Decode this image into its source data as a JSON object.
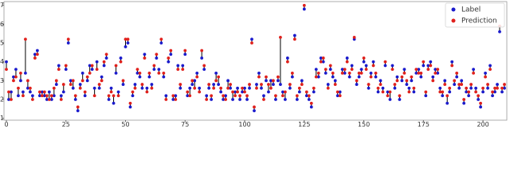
{
  "chart_data": {
    "type": "scatter",
    "x": [
      0,
      1,
      2,
      3,
      4,
      5,
      6,
      7,
      8,
      9,
      10,
      11,
      12,
      13,
      14,
      15,
      16,
      17,
      18,
      19,
      20,
      21,
      22,
      23,
      24,
      25,
      26,
      27,
      28,
      29,
      30,
      31,
      32,
      33,
      34,
      35,
      36,
      37,
      38,
      39,
      40,
      41,
      42,
      43,
      44,
      45,
      46,
      47,
      48,
      49,
      50,
      51,
      52,
      53,
      54,
      55,
      56,
      57,
      58,
      59,
      60,
      61,
      62,
      63,
      64,
      65,
      66,
      67,
      68,
      69,
      70,
      71,
      72,
      73,
      74,
      75,
      76,
      77,
      78,
      79,
      80,
      81,
      82,
      83,
      84,
      85,
      86,
      87,
      88,
      89,
      90,
      91,
      92,
      93,
      94,
      95,
      96,
      97,
      98,
      99,
      100,
      101,
      102,
      103,
      104,
      105,
      106,
      107,
      108,
      109,
      110,
      111,
      112,
      113,
      114,
      115,
      116,
      117,
      118,
      119,
      120,
      121,
      122,
      123,
      124,
      125,
      126,
      127,
      128,
      129,
      130,
      131,
      132,
      133,
      134,
      135,
      136,
      137,
      138,
      139,
      140,
      141,
      142,
      143,
      144,
      145,
      146,
      147,
      148,
      149,
      150,
      151,
      152,
      153,
      154,
      155,
      156,
      157,
      158,
      159,
      160,
      161,
      162,
      163,
      164,
      165,
      166,
      167,
      168,
      169,
      170,
      171,
      172,
      173,
      174,
      175,
      176,
      177,
      178,
      179,
      180,
      181,
      182,
      183,
      184,
      185,
      186,
      187,
      188,
      189,
      190,
      191,
      192,
      193,
      194,
      195,
      196,
      197,
      198,
      199,
      200,
      201,
      202,
      203,
      204,
      205,
      206,
      207,
      208,
      209
    ],
    "series": [
      {
        "name": "Label",
        "color": "#1a1acc",
        "values": [
          4.0,
          2.0,
          2.4,
          3.2,
          3.6,
          2.2,
          3.0,
          2.4,
          3.4,
          2.6,
          2.4,
          2.2,
          4.4,
          4.6,
          2.2,
          2.4,
          2.2,
          2.0,
          2.4,
          2.0,
          2.2,
          2.8,
          3.8,
          2.2,
          2.4,
          3.6,
          5.0,
          3.0,
          2.6,
          2.0,
          1.4,
          2.8,
          3.4,
          2.2,
          3.0,
          3.8,
          3.6,
          2.6,
          4.0,
          2.6,
          3.2,
          3.8,
          4.2,
          2.0,
          2.6,
          1.8,
          3.4,
          2.4,
          4.2,
          2.8,
          4.8,
          5.0,
          1.6,
          2.2,
          2.8,
          3.4,
          3.2,
          2.6,
          4.4,
          2.6,
          3.2,
          2.8,
          3.6,
          4.2,
          3.6,
          5.0,
          3.2,
          2.2,
          4.0,
          4.4,
          2.0,
          2.2,
          3.8,
          2.6,
          3.8,
          4.4,
          2.2,
          2.6,
          2.8,
          3.0,
          3.4,
          2.6,
          4.2,
          3.6,
          2.2,
          2.6,
          2.0,
          2.8,
          3.4,
          2.8,
          2.4,
          2.0,
          2.2,
          3.0,
          2.6,
          2.0,
          2.4,
          2.6,
          2.0,
          2.4,
          2.6,
          2.0,
          2.6,
          5.2,
          1.4,
          2.8,
          3.4,
          2.6,
          2.2,
          3.0,
          2.4,
          3.0,
          2.8,
          2.0,
          3.0,
          2.8,
          2.4,
          2.0,
          4.2,
          2.6,
          3.2,
          5.4,
          2.0,
          2.4,
          3.0,
          6.8,
          2.2,
          2.0,
          1.6,
          2.4,
          3.6,
          3.2,
          4.2,
          4.0,
          3.4,
          2.8,
          3.6,
          3.2,
          3.0,
          2.2,
          2.4,
          3.6,
          3.4,
          4.2,
          3.2,
          3.8,
          5.2,
          2.8,
          3.2,
          3.6,
          4.0,
          3.8,
          2.6,
          3.4,
          4.0,
          3.2,
          2.4,
          3.0,
          2.6,
          3.8,
          2.4,
          2.0,
          3.8,
          2.6,
          3.2,
          2.0,
          3.0,
          3.6,
          2.8,
          2.6,
          3.0,
          2.4,
          3.4,
          3.6,
          3.2,
          3.8,
          2.2,
          3.8,
          4.0,
          3.2,
          3.6,
          3.4,
          2.6,
          2.2,
          3.0,
          1.8,
          2.4,
          4.0,
          2.8,
          3.2,
          2.6,
          3.0,
          1.8,
          2.4,
          2.2,
          2.6,
          3.6,
          2.6,
          2.0,
          1.6,
          2.4,
          3.4,
          2.6,
          3.8,
          2.2,
          2.4,
          2.8,
          5.6,
          2.4,
          2.6
        ]
      },
      {
        "name": "Prediction",
        "color": "#e0201c",
        "values": [
          3.6,
          2.4,
          2.0,
          3.0,
          3.2,
          2.6,
          3.4,
          2.2,
          5.2,
          3.0,
          2.6,
          2.0,
          4.2,
          4.4,
          2.4,
          2.2,
          2.4,
          2.2,
          2.0,
          2.2,
          2.6,
          3.0,
          3.6,
          2.0,
          2.8,
          3.8,
          5.2,
          2.8,
          3.0,
          2.2,
          1.6,
          2.6,
          3.0,
          2.4,
          3.2,
          3.4,
          3.8,
          2.2,
          3.6,
          2.8,
          3.0,
          4.0,
          4.4,
          2.2,
          2.4,
          2.2,
          3.8,
          2.2,
          4.0,
          3.0,
          5.2,
          5.2,
          1.8,
          2.4,
          2.6,
          3.6,
          3.4,
          2.8,
          4.2,
          2.4,
          3.4,
          2.6,
          3.8,
          4.4,
          3.4,
          5.2,
          3.4,
          2.0,
          4.2,
          4.6,
          2.2,
          2.0,
          3.6,
          2.8,
          3.6,
          4.6,
          2.4,
          2.2,
          3.0,
          2.6,
          3.2,
          2.4,
          4.6,
          3.8,
          2.0,
          2.8,
          2.2,
          2.6,
          3.0,
          3.2,
          2.6,
          2.2,
          2.0,
          2.6,
          2.8,
          2.4,
          2.2,
          2.4,
          2.2,
          2.6,
          2.4,
          2.2,
          2.8,
          5.0,
          1.6,
          2.6,
          3.2,
          2.8,
          2.0,
          3.2,
          2.8,
          2.6,
          3.0,
          2.2,
          3.2,
          5.3,
          2.2,
          2.4,
          4.0,
          2.8,
          3.4,
          5.2,
          2.2,
          2.6,
          2.8,
          7.0,
          2.4,
          2.2,
          1.8,
          2.6,
          3.2,
          3.4,
          4.0,
          4.2,
          3.6,
          2.6,
          3.8,
          3.4,
          2.8,
          2.4,
          2.2,
          3.4,
          3.6,
          4.0,
          3.4,
          3.6,
          5.3,
          3.0,
          3.4,
          3.4,
          4.2,
          3.6,
          2.8,
          3.2,
          3.8,
          3.4,
          2.6,
          2.8,
          2.4,
          4.0,
          2.2,
          2.4,
          3.6,
          2.8,
          3.0,
          2.2,
          3.2,
          3.4,
          3.0,
          2.4,
          3.2,
          2.6,
          3.6,
          3.4,
          3.4,
          4.0,
          2.4,
          3.6,
          3.8,
          3.0,
          3.4,
          3.6,
          2.4,
          2.4,
          2.8,
          2.2,
          2.6,
          3.8,
          3.0,
          3.4,
          2.8,
          2.8,
          2.0,
          2.6,
          2.4,
          2.8,
          3.4,
          2.4,
          2.2,
          1.8,
          2.6,
          3.2,
          2.8,
          3.6,
          2.4,
          2.6,
          2.6,
          5.9,
          2.6,
          2.8
        ]
      }
    ],
    "xlim": [
      -1,
      210
    ],
    "ylim": [
      0.9,
      7.2
    ],
    "xticks": [
      0,
      25,
      50,
      75,
      100,
      125,
      150,
      175,
      200
    ],
    "yticks": [
      1,
      2,
      3,
      4,
      5,
      6,
      7
    ],
    "legend": "upper right"
  }
}
